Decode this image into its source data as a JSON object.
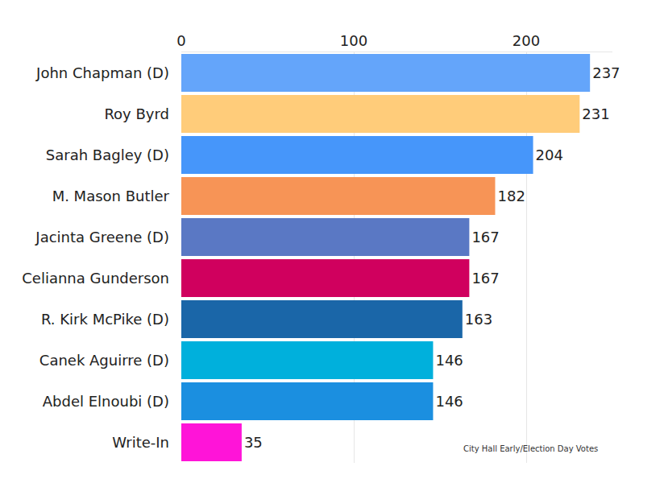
{
  "chart_data": {
    "type": "bar",
    "orientation": "horizontal",
    "categories": [
      "John Chapman (D)",
      "Roy Byrd",
      "Sarah Bagley (D)",
      "M. Mason Butler",
      "Jacinta Greene (D)",
      "Celianna Gunderson",
      "R. Kirk McPike (D)",
      "Canek Aguirre (D)",
      "Abdel Elnoubi (D)",
      "Write-In"
    ],
    "values": [
      237,
      231,
      204,
      182,
      167,
      167,
      163,
      146,
      146,
      35
    ],
    "colors": [
      "#64a5fa",
      "#ffcc7a",
      "#4696fa",
      "#f79456",
      "#5a78c4",
      "#d0005e",
      "#1a66a8",
      "#00b0dc",
      "#1b8fe0",
      "#ff14d8"
    ],
    "xlim": [
      0,
      250
    ],
    "xticks": [
      0,
      100,
      200
    ],
    "grid": true,
    "data_labels": true,
    "annotation": "City Hall Early/Election Day Votes"
  }
}
